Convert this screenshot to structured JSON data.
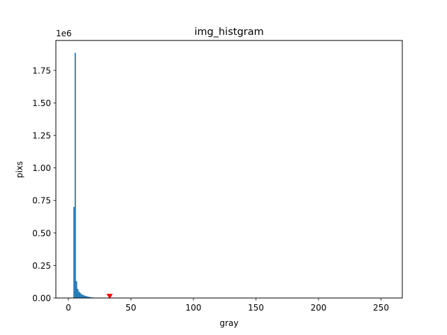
{
  "chart_data": {
    "type": "bar",
    "title": "img_histgram",
    "xlabel": "gray",
    "ylabel": "pixs",
    "y_offset_label": "1e6",
    "xlim": [
      -10,
      267
    ],
    "ylim": [
      0,
      1.98
    ],
    "xticks": [
      0,
      50,
      100,
      150,
      200,
      250
    ],
    "xtick_labels": [
      "0",
      "50",
      "100",
      "150",
      "200",
      "250"
    ],
    "yticks": [
      0,
      0.25,
      0.5,
      0.75,
      1.0,
      1.25,
      1.5,
      1.75
    ],
    "ytick_labels": [
      "0.00",
      "0.25",
      "0.50",
      "0.75",
      "1.00",
      "1.25",
      "1.50",
      "1.75"
    ],
    "bar_color": "#1f77b4",
    "bars": [
      {
        "x": 4,
        "value": 0.7
      },
      {
        "x": 5,
        "value": 1.885
      },
      {
        "x": 6,
        "value": 0.13
      },
      {
        "x": 7,
        "value": 0.07
      },
      {
        "x": 8,
        "value": 0.05
      },
      {
        "x": 9,
        "value": 0.04
      },
      {
        "x": 10,
        "value": 0.03
      },
      {
        "x": 11,
        "value": 0.025
      },
      {
        "x": 12,
        "value": 0.02
      },
      {
        "x": 13,
        "value": 0.017
      },
      {
        "x": 14,
        "value": 0.014
      },
      {
        "x": 15,
        "value": 0.011
      },
      {
        "x": 16,
        "value": 0.009
      },
      {
        "x": 17,
        "value": 0.007
      },
      {
        "x": 18,
        "value": 0.005
      },
      {
        "x": 19,
        "value": 0.004
      },
      {
        "x": 20,
        "value": 0.003
      },
      {
        "x": 21,
        "value": 0.002
      },
      {
        "x": 22,
        "value": 0.0015
      },
      {
        "x": 23,
        "value": 0.001
      }
    ],
    "marker": {
      "x": 33,
      "y": 0.0,
      "shape": "triangle-down",
      "color": "#ff0000"
    }
  }
}
